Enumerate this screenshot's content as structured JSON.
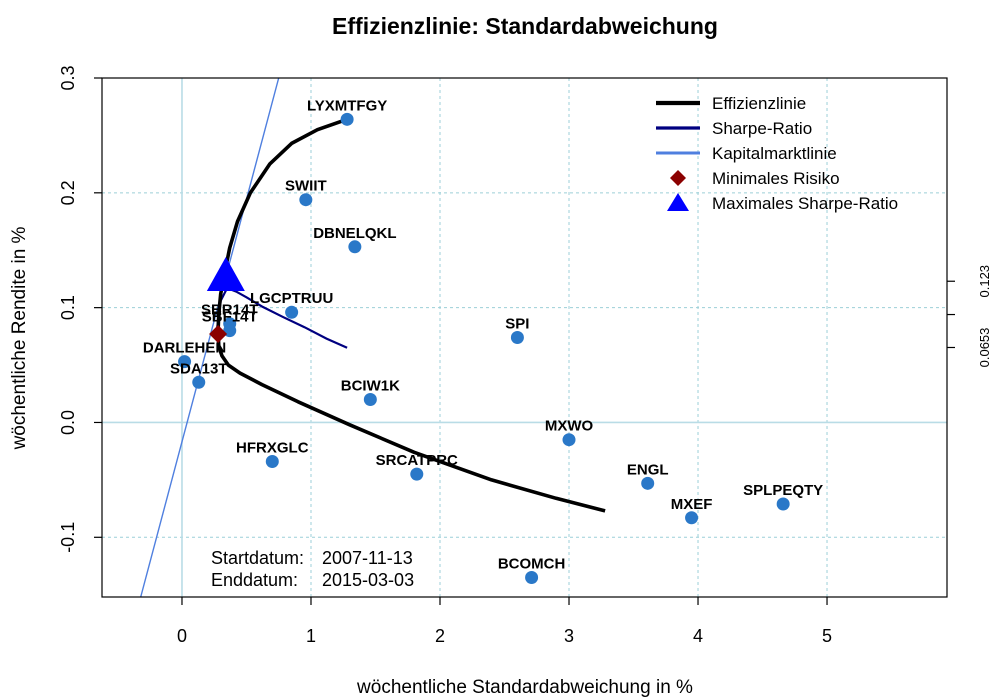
{
  "chart_data": {
    "type": "scatter",
    "title": "Effizienzlinie: Standardabweichung",
    "xlabel": "wöchentliche Standardabweichung in %",
    "ylabel": "wöchentliche Rendite in %",
    "xlim": [
      -0.62,
      5.93
    ],
    "ylim": [
      -0.152,
      0.3
    ],
    "x_ticks": [
      0,
      1,
      2,
      3,
      4,
      5
    ],
    "y_ticks": [
      -0.1,
      0.0,
      0.1,
      0.2,
      0.3
    ],
    "y_tick_labels": [
      "-0.1",
      "0.0",
      "0.1",
      "0.2",
      "0.3"
    ],
    "right_axis_ticks": [
      {
        "value": 0.0653,
        "label": "0.0653"
      },
      {
        "value": 0.094,
        "label": ""
      },
      {
        "value": 0.123,
        "label": "0.123"
      }
    ],
    "grid": true,
    "points": [
      {
        "label": "LYXMTFGY",
        "x": 1.28,
        "y": 0.264
      },
      {
        "label": "SWIIT",
        "x": 0.96,
        "y": 0.194
      },
      {
        "label": "DBNELQKL",
        "x": 1.34,
        "y": 0.153
      },
      {
        "label": "LGCPTRUU",
        "x": 0.85,
        "y": 0.096
      },
      {
        "label": "SBR14T",
        "x": 0.37,
        "y": 0.086
      },
      {
        "label": "SBF14T",
        "x": 0.37,
        "y": 0.08
      },
      {
        "label": "DARLEHEN",
        "x": 0.02,
        "y": 0.053
      },
      {
        "label": "SDA13T",
        "x": 0.13,
        "y": 0.035
      },
      {
        "label": "SPI",
        "x": 2.6,
        "y": 0.074
      },
      {
        "label": "BCIW1K",
        "x": 1.46,
        "y": 0.02
      },
      {
        "label": "MXWO",
        "x": 3.0,
        "y": -0.015
      },
      {
        "label": "HFRXGLC",
        "x": 0.7,
        "y": -0.034
      },
      {
        "label": "SRCATPRC",
        "x": 1.82,
        "y": -0.045
      },
      {
        "label": "ENGL",
        "x": 3.61,
        "y": -0.053
      },
      {
        "label": "SPLPEQTY",
        "x": 4.66,
        "y": -0.071
      },
      {
        "label": "MXEF",
        "x": 3.95,
        "y": -0.083
      },
      {
        "label": "BCOMCH",
        "x": 2.71,
        "y": -0.135
      }
    ],
    "efficient_frontier": {
      "name": "Effizienzlinie",
      "color": "#000000",
      "x": [
        1.28,
        1.05,
        0.85,
        0.68,
        0.53,
        0.43,
        0.37,
        0.33,
        0.3,
        0.285,
        0.28,
        0.285,
        0.31,
        0.36,
        0.45,
        0.62,
        0.9,
        1.3,
        1.8,
        2.4,
        2.9,
        3.28
      ],
      "y": [
        0.264,
        0.255,
        0.243,
        0.225,
        0.2,
        0.175,
        0.152,
        0.13,
        0.112,
        0.095,
        0.08,
        0.066,
        0.058,
        0.05,
        0.043,
        0.033,
        0.018,
        -0.002,
        -0.026,
        -0.05,
        -0.066,
        -0.077
      ]
    },
    "sharpe_ratio_line": {
      "name": "Sharpe-Ratio",
      "color": "#000080",
      "x": [
        0.27,
        0.3,
        0.35,
        0.42,
        0.5,
        0.62,
        0.78,
        0.95,
        1.12,
        1.28
      ],
      "y": [
        0.08,
        0.106,
        0.117,
        0.114,
        0.109,
        0.101,
        0.092,
        0.083,
        0.073,
        0.065
      ]
    },
    "capital_market_line": {
      "name": "Kapitalmarktlinie",
      "color": "#4F7FDF",
      "x": [
        -0.32,
        0.75
      ],
      "y": [
        -0.152,
        0.3
      ]
    },
    "min_risk": {
      "name": "Minimales Risiko",
      "x": 0.28,
      "y": 0.077,
      "color": "#8B0000"
    },
    "max_sharpe": {
      "name": "Maximales Sharpe-Ratio",
      "x": 0.34,
      "y": 0.125,
      "color": "#0000FF"
    },
    "point_color": "#2A78C8",
    "legend": {
      "position": "top-right",
      "items": [
        "Effizienzlinie",
        "Sharpe-Ratio",
        "Kapitalmarktlinie",
        "Minimales Risiko",
        "Maximales Sharpe-Ratio"
      ]
    },
    "annotations": [
      {
        "label": "Startdatum:",
        "value": "2007-11-13"
      },
      {
        "label": "Enddatum:",
        "value": "2015-03-03"
      }
    ]
  }
}
